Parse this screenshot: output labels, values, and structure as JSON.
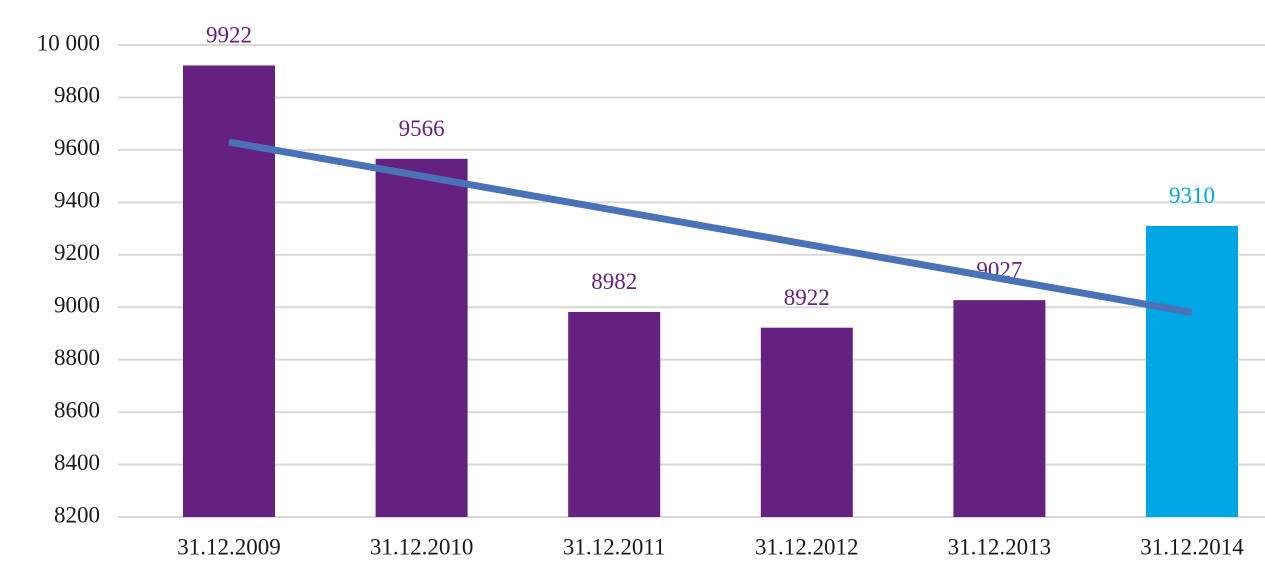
{
  "chart_data": {
    "type": "bar",
    "categories": [
      "31.12.2009",
      "31.12.2010",
      "31.12.2011",
      "31.12.2012",
      "31.12.2013",
      "31.12.2014"
    ],
    "values": [
      9922,
      9566,
      8982,
      8922,
      9027,
      9310
    ],
    "colors": [
      "#642180",
      "#642180",
      "#642180",
      "#642180",
      "#642180",
      "#00a6e2"
    ],
    "trend": {
      "color": "#4a72b8",
      "values": [
        9630,
        9500,
        9370,
        9240,
        9110,
        8980
      ]
    },
    "ylim": [
      8200,
      10000
    ],
    "yticks": [
      8200,
      8400,
      8600,
      8800,
      9000,
      9200,
      9400,
      9600,
      9800,
      {
        "value": 10000,
        "label": "10 000"
      }
    ],
    "grid": true
  }
}
